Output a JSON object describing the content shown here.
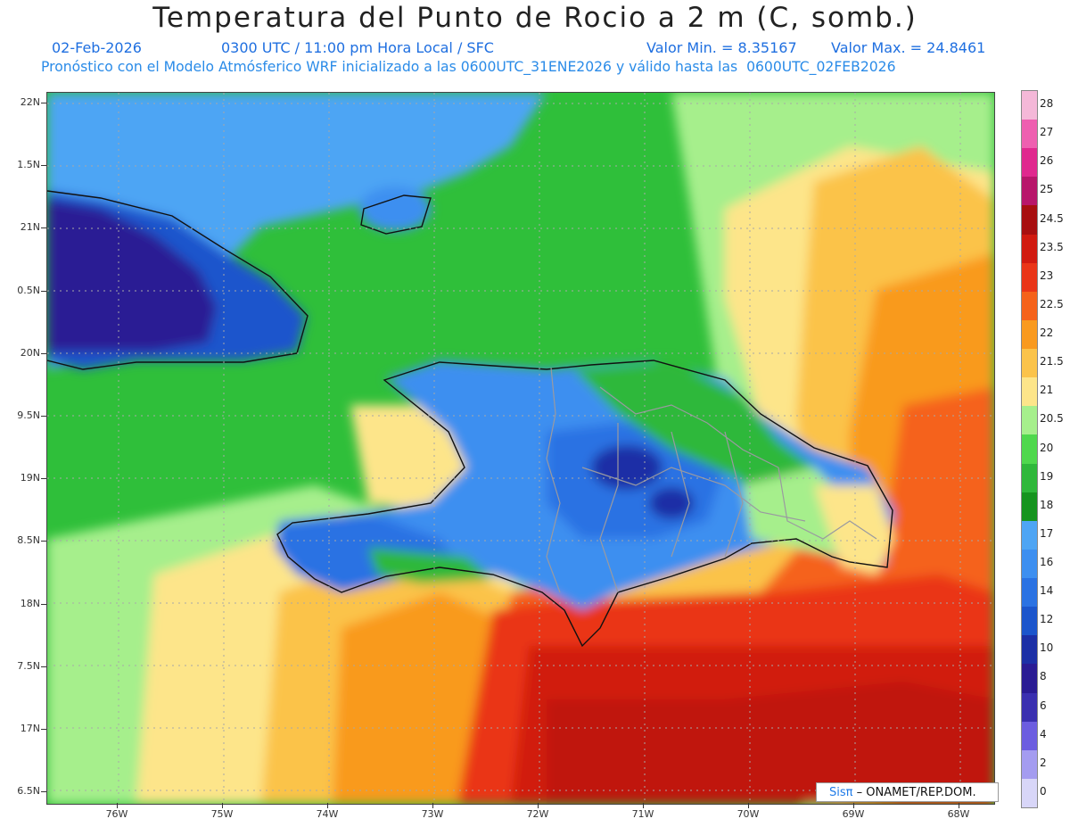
{
  "title": "Temperatura del Punto de Rocio a 2 m (C, somb.)",
  "header": {
    "date": "02-Feb-2026",
    "time": "0300 UTC / 11:00 pm Hora Local / SFC",
    "min": "Valor Min. = 8.35167",
    "max": "Valor Max. = 24.8461",
    "model_info": "Pronóstico con el Modelo Atmósferico WRF inicializado a las 0600UTC_31ENE2026 y válido hasta las  0600UTC_02FEB2026"
  },
  "lat_labels": [
    "22N",
    "1.5N",
    "21N",
    "0.5N",
    "20N",
    "9.5N",
    "19N",
    "8.5N",
    "18N",
    "7.5N",
    "17N",
    "6.5N"
  ],
  "lon_labels": [
    "76W",
    "75W",
    "74W",
    "73W",
    "72W",
    "71W",
    "70W",
    "69W",
    "68W"
  ],
  "colorbar": {
    "labels": [
      "28",
      "27",
      "26",
      "25",
      "24.5",
      "23.5",
      "23",
      "22.5",
      "22",
      "21.5",
      "21",
      "20.5",
      "20",
      "19",
      "18",
      "17",
      "16",
      "14",
      "12",
      "10",
      "8",
      "6",
      "4",
      "2",
      "0"
    ],
    "colors": [
      "#f4b8d8",
      "#ee5fb0",
      "#e0288e",
      "#b8166a",
      "#a80f10",
      "#d11a10",
      "#ea3518",
      "#f5621a",
      "#f99a1f",
      "#fbc34a",
      "#fde58a",
      "#a6ef8c",
      "#4fd84d",
      "#2fb83b",
      "#16941f",
      "#4ea5f4",
      "#3d8ff0",
      "#2a72e3",
      "#1b55cc",
      "#1c2fa6",
      "#2a1b94",
      "#3a2fb0",
      "#6c5de0",
      "#a49cf0",
      "#d8d6f8"
    ]
  },
  "credit": {
    "brand": "Sisπ",
    "text": " – ONAMET/REP.DOM."
  }
}
